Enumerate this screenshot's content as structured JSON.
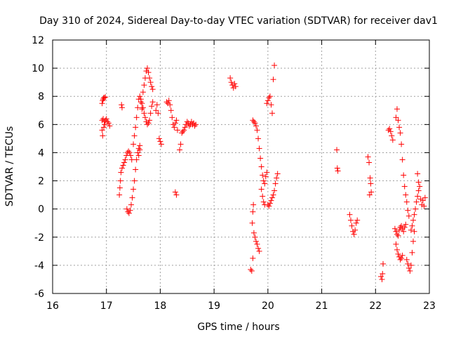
{
  "chart_data": {
    "type": "scatter",
    "title": "Day 310 of 2024, Sidereal Day-to-day VTEC variation (SDTVAR) for receiver dav1",
    "xlabel": "GPS time / hours",
    "ylabel": "SDTVAR / TECUs",
    "xlim": [
      16,
      23
    ],
    "ylim": [
      -6,
      12
    ],
    "x_ticks": [
      "16",
      "17",
      "18",
      "19",
      "20",
      "21",
      "22",
      "23"
    ],
    "y_ticks": [
      "-6",
      "-4",
      "-2",
      "0",
      "2",
      "4",
      "6",
      "8",
      "10",
      "12"
    ],
    "grid": true,
    "marker": "+",
    "series": [
      {
        "name": "SDTVAR",
        "color": "#ff0000",
        "points": [
          [
            16.92,
            7.5
          ],
          [
            16.93,
            7.7
          ],
          [
            16.94,
            7.8
          ],
          [
            16.95,
            7.9
          ],
          [
            16.96,
            7.9
          ],
          [
            16.98,
            7.95
          ],
          [
            16.92,
            6.3
          ],
          [
            16.94,
            6.4
          ],
          [
            16.96,
            6.2
          ],
          [
            16.98,
            6.3
          ],
          [
            17.0,
            6.4
          ],
          [
            17.02,
            6.2
          ],
          [
            17.04,
            6.1
          ],
          [
            17.06,
            5.9
          ],
          [
            16.92,
            5.6
          ],
          [
            16.93,
            5.2
          ],
          [
            16.95,
            5.8
          ],
          [
            16.97,
            6.0
          ],
          [
            17.28,
            7.4
          ],
          [
            17.29,
            7.2
          ],
          [
            17.24,
            1.0
          ],
          [
            17.25,
            1.5
          ],
          [
            17.26,
            2.0
          ],
          [
            17.27,
            2.6
          ],
          [
            17.29,
            2.9
          ],
          [
            17.31,
            3.1
          ],
          [
            17.33,
            3.3
          ],
          [
            17.35,
            3.5
          ],
          [
            17.37,
            3.8
          ],
          [
            17.39,
            4.0
          ],
          [
            17.41,
            4.1
          ],
          [
            17.43,
            4.0
          ],
          [
            17.45,
            3.8
          ],
          [
            17.47,
            3.5
          ],
          [
            17.38,
            0.0
          ],
          [
            17.4,
            -0.2
          ],
          [
            17.42,
            -0.3
          ],
          [
            17.44,
            -0.1
          ],
          [
            17.46,
            0.3
          ],
          [
            17.48,
            0.8
          ],
          [
            17.5,
            1.4
          ],
          [
            17.52,
            2.0
          ],
          [
            17.54,
            2.8
          ],
          [
            17.56,
            3.5
          ],
          [
            17.58,
            4.0
          ],
          [
            17.6,
            4.3
          ],
          [
            17.62,
            4.5
          ],
          [
            17.5,
            4.6
          ],
          [
            17.52,
            5.2
          ],
          [
            17.54,
            5.8
          ],
          [
            17.56,
            6.5
          ],
          [
            17.58,
            7.2
          ],
          [
            17.6,
            7.8
          ],
          [
            17.62,
            8.0
          ],
          [
            17.64,
            7.8
          ],
          [
            17.66,
            7.5
          ],
          [
            17.68,
            7.2
          ],
          [
            17.7,
            6.8
          ],
          [
            17.72,
            6.5
          ],
          [
            17.74,
            6.2
          ],
          [
            17.76,
            6.0
          ],
          [
            17.68,
            8.3
          ],
          [
            17.7,
            8.8
          ],
          [
            17.72,
            9.3
          ],
          [
            17.74,
            9.8
          ],
          [
            17.76,
            10.0
          ],
          [
            17.78,
            9.7
          ],
          [
            17.8,
            9.3
          ],
          [
            17.82,
            9.0
          ],
          [
            17.84,
            8.7
          ],
          [
            17.86,
            8.5
          ],
          [
            17.6,
            3.8
          ],
          [
            17.62,
            4.2
          ],
          [
            17.64,
            7.6
          ],
          [
            17.66,
            7.1
          ],
          [
            17.78,
            6.1
          ],
          [
            17.8,
            6.3
          ],
          [
            17.82,
            6.8
          ],
          [
            17.84,
            7.3
          ],
          [
            17.86,
            7.6
          ],
          [
            17.92,
            7.0
          ],
          [
            17.94,
            7.4
          ],
          [
            17.96,
            6.8
          ],
          [
            17.98,
            5.0
          ],
          [
            18.0,
            4.8
          ],
          [
            18.02,
            4.6
          ],
          [
            18.12,
            7.6
          ],
          [
            18.14,
            7.5
          ],
          [
            18.16,
            7.7
          ],
          [
            18.18,
            7.4
          ],
          [
            18.2,
            7.0
          ],
          [
            18.22,
            6.5
          ],
          [
            18.24,
            6.0
          ],
          [
            18.26,
            5.8
          ],
          [
            18.28,
            6.1
          ],
          [
            18.3,
            6.3
          ],
          [
            18.32,
            5.6
          ],
          [
            18.28,
            1.2
          ],
          [
            18.3,
            1.0
          ],
          [
            18.36,
            4.2
          ],
          [
            18.38,
            4.6
          ],
          [
            18.4,
            5.4
          ],
          [
            18.42,
            5.5
          ],
          [
            18.44,
            5.6
          ],
          [
            18.46,
            5.8
          ],
          [
            18.48,
            6.0
          ],
          [
            18.5,
            6.2
          ],
          [
            18.52,
            6.1
          ],
          [
            18.54,
            5.9
          ],
          [
            18.56,
            6.0
          ],
          [
            18.58,
            6.2
          ],
          [
            18.6,
            6.0
          ],
          [
            18.62,
            6.1
          ],
          [
            18.64,
            5.9
          ],
          [
            18.66,
            6.0
          ],
          [
            19.3,
            9.3
          ],
          [
            19.32,
            9.0
          ],
          [
            19.34,
            8.8
          ],
          [
            19.36,
            8.6
          ],
          [
            19.38,
            8.9
          ],
          [
            19.4,
            8.7
          ],
          [
            19.68,
            -4.3
          ],
          [
            19.7,
            -4.4
          ],
          [
            19.72,
            -3.5
          ],
          [
            19.71,
            -1.0
          ],
          [
            19.72,
            -0.2
          ],
          [
            19.73,
            0.3
          ],
          [
            19.74,
            -1.7
          ],
          [
            19.76,
            -2.0
          ],
          [
            19.78,
            -2.3
          ],
          [
            19.8,
            -2.5
          ],
          [
            19.82,
            -2.8
          ],
          [
            19.84,
            -3.0
          ],
          [
            19.72,
            6.3
          ],
          [
            19.74,
            6.2
          ],
          [
            19.76,
            6.1
          ],
          [
            19.78,
            5.9
          ],
          [
            19.8,
            5.6
          ],
          [
            19.82,
            5.0
          ],
          [
            19.84,
            4.3
          ],
          [
            19.86,
            3.6
          ],
          [
            19.88,
            3.0
          ],
          [
            19.9,
            2.4
          ],
          [
            19.92,
            2.0
          ],
          [
            19.94,
            1.8
          ],
          [
            19.96,
            2.3
          ],
          [
            19.98,
            2.6
          ],
          [
            19.88,
            1.4
          ],
          [
            19.9,
            0.9
          ],
          [
            19.92,
            0.5
          ],
          [
            19.94,
            0.3
          ],
          [
            19.98,
            7.5
          ],
          [
            20.0,
            7.7
          ],
          [
            20.02,
            7.9
          ],
          [
            20.04,
            8.0
          ],
          [
            20.06,
            7.4
          ],
          [
            20.08,
            6.8
          ],
          [
            20.0,
            0.3
          ],
          [
            20.02,
            0.2
          ],
          [
            20.04,
            0.4
          ],
          [
            20.06,
            0.6
          ],
          [
            20.08,
            0.8
          ],
          [
            20.1,
            1.0
          ],
          [
            20.12,
            1.3
          ],
          [
            20.14,
            1.8
          ],
          [
            20.16,
            2.2
          ],
          [
            20.18,
            2.5
          ],
          [
            20.1,
            9.2
          ],
          [
            20.12,
            10.2
          ],
          [
            21.28,
            4.2
          ],
          [
            21.29,
            2.9
          ],
          [
            21.3,
            2.7
          ],
          [
            21.52,
            -0.4
          ],
          [
            21.54,
            -0.8
          ],
          [
            21.56,
            -1.2
          ],
          [
            21.58,
            -1.6
          ],
          [
            21.6,
            -1.8
          ],
          [
            21.62,
            -1.5
          ],
          [
            21.64,
            -1.0
          ],
          [
            21.66,
            -0.8
          ],
          [
            21.86,
            3.7
          ],
          [
            21.88,
            3.3
          ],
          [
            21.9,
            2.2
          ],
          [
            21.91,
            1.8
          ],
          [
            21.92,
            1.2
          ],
          [
            21.89,
            1.0
          ],
          [
            22.1,
            -4.8
          ],
          [
            22.12,
            -5.0
          ],
          [
            22.13,
            -4.6
          ],
          [
            22.14,
            -3.9
          ],
          [
            22.24,
            5.6
          ],
          [
            22.26,
            5.7
          ],
          [
            22.28,
            5.5
          ],
          [
            22.3,
            5.2
          ],
          [
            22.32,
            4.9
          ],
          [
            22.38,
            6.5
          ],
          [
            22.4,
            7.1
          ],
          [
            22.42,
            6.3
          ],
          [
            22.44,
            5.8
          ],
          [
            22.46,
            5.4
          ],
          [
            22.48,
            4.6
          ],
          [
            22.5,
            3.5
          ],
          [
            22.52,
            2.4
          ],
          [
            22.54,
            1.6
          ],
          [
            22.56,
            1.0
          ],
          [
            22.58,
            0.5
          ],
          [
            22.6,
            -0.1
          ],
          [
            22.62,
            -0.5
          ],
          [
            22.36,
            -1.4
          ],
          [
            22.38,
            -1.6
          ],
          [
            22.4,
            -1.8
          ],
          [
            22.42,
            -1.9
          ],
          [
            22.44,
            -1.5
          ],
          [
            22.46,
            -1.3
          ],
          [
            22.48,
            -1.2
          ],
          [
            22.5,
            -1.4
          ],
          [
            22.52,
            -1.6
          ],
          [
            22.54,
            -1.3
          ],
          [
            22.56,
            -1.1
          ],
          [
            22.38,
            -2.5
          ],
          [
            22.4,
            -2.9
          ],
          [
            22.42,
            -3.2
          ],
          [
            22.44,
            -3.4
          ],
          [
            22.46,
            -3.6
          ],
          [
            22.48,
            -3.5
          ],
          [
            22.5,
            -3.3
          ],
          [
            22.58,
            -3.6
          ],
          [
            22.6,
            -3.9
          ],
          [
            22.62,
            -4.2
          ],
          [
            22.64,
            -4.4
          ],
          [
            22.66,
            -4.0
          ],
          [
            22.68,
            -3.1
          ],
          [
            22.7,
            -2.3
          ],
          [
            22.72,
            -1.6
          ],
          [
            22.66,
            -1.5
          ],
          [
            22.68,
            -1.2
          ],
          [
            22.7,
            -0.8
          ],
          [
            22.72,
            -0.4
          ],
          [
            22.74,
            0.0
          ],
          [
            22.76,
            0.5
          ],
          [
            22.78,
            0.9
          ],
          [
            22.8,
            1.3
          ],
          [
            22.82,
            1.6
          ],
          [
            22.78,
            2.5
          ],
          [
            22.8,
            1.9
          ],
          [
            22.84,
            0.7
          ],
          [
            22.86,
            0.3
          ],
          [
            22.88,
            0.6
          ],
          [
            22.9,
            0.2
          ],
          [
            22.92,
            0.8
          ]
        ]
      }
    ]
  }
}
